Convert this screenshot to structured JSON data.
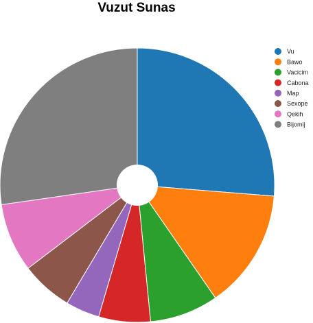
{
  "chart_data": {
    "type": "pie",
    "title": "Vuzut Sunas",
    "donut": true,
    "start_angle_deg": 0,
    "direction": "clockwise",
    "legend_position": "right",
    "categories": [
      "Vu",
      "Bawo",
      "Vacicim",
      "Cabona",
      "Map",
      "Sexope",
      "Qekih",
      "Bijomij"
    ],
    "values": [
      26.3,
      14.1,
      8.1,
      6.1,
      4.0,
      6.1,
      8.1,
      27.3
    ],
    "colors": [
      "#1f77b4",
      "#ff7f0e",
      "#2ca02c",
      "#d62728",
      "#9467bd",
      "#8c564b",
      "#e377c2",
      "#7f7f7f"
    ]
  }
}
